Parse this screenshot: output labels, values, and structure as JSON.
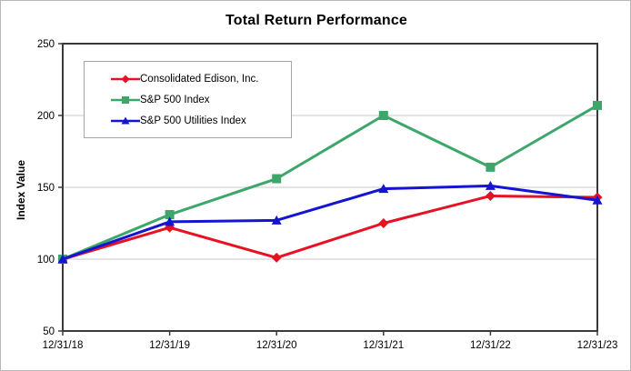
{
  "chart_data": {
    "type": "line",
    "title": "Total Return Performance",
    "ylabel": "Index Value",
    "xlabel": "",
    "categories": [
      "12/31/18",
      "12/31/19",
      "12/31/20",
      "12/31/21",
      "12/31/22",
      "12/31/23"
    ],
    "series": [
      {
        "name": "Consolidated Edison, Inc.",
        "marker": "diamond",
        "color": "#e81123",
        "values": [
          100,
          122,
          101,
          125,
          144,
          143
        ]
      },
      {
        "name": "S&P 500 Index",
        "marker": "square",
        "color": "#3da66a",
        "values": [
          100,
          131,
          156,
          200,
          164,
          207
        ]
      },
      {
        "name": "S&P 500 Utilities Index",
        "marker": "triangle",
        "color": "#1414d2",
        "values": [
          100,
          126,
          127,
          149,
          151,
          141
        ]
      }
    ],
    "ylim": [
      50,
      250
    ],
    "yticks": [
      50,
      100,
      150,
      200,
      250
    ],
    "grid": true,
    "gridlines_at": [
      100,
      150,
      200
    ],
    "legend_position": "upper-left",
    "colors": {
      "frame": "#3a3a3a",
      "gridline": "#c9c9c9",
      "tick": "#3a3a3a",
      "text": "#000000",
      "background": "#ffffff"
    }
  }
}
